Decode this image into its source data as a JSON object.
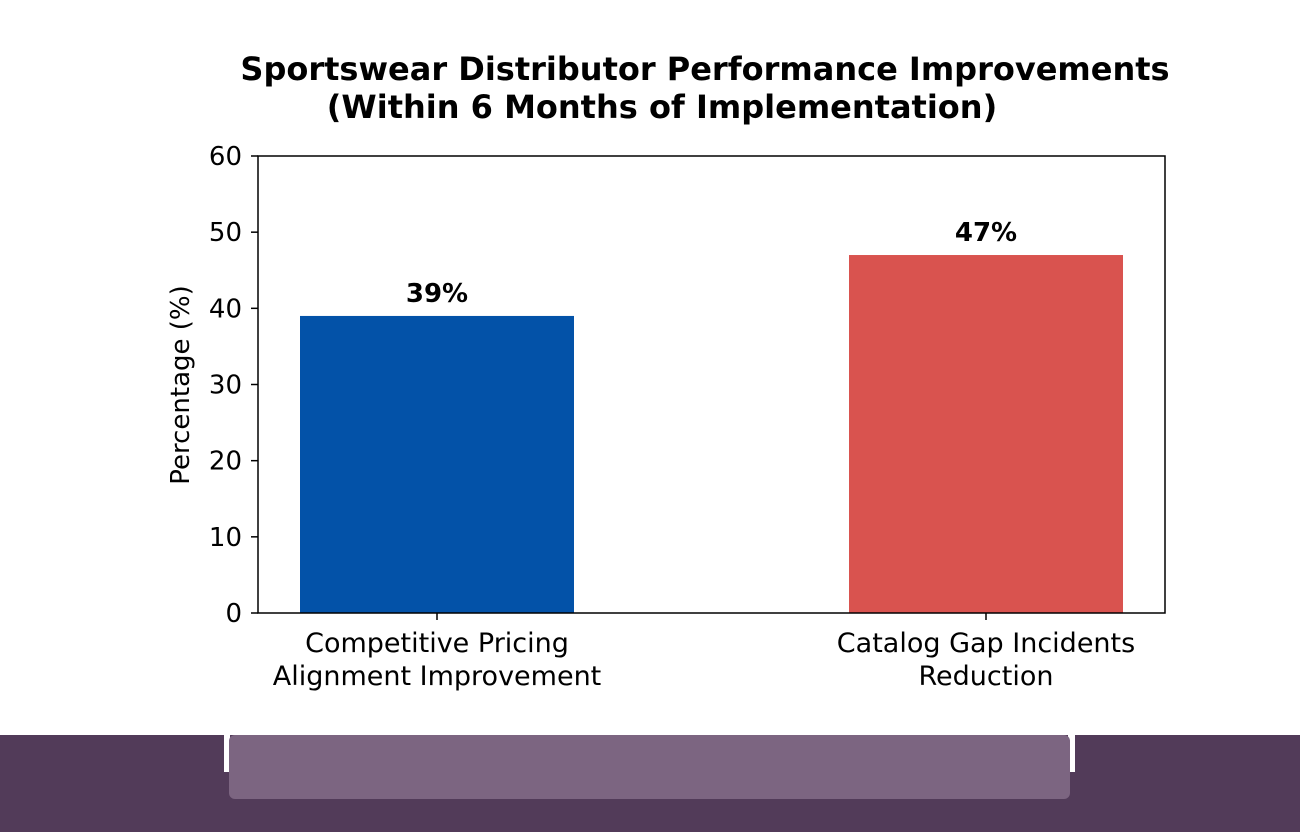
{
  "chart_data": {
    "type": "bar",
    "title_lines": [
      "Sportswear Distributor Performance Improvements",
      "(Within 6 Months of Implementation)"
    ],
    "xlabel": "",
    "ylabel": "Percentage (%)",
    "ylim": [
      0,
      60
    ],
    "yticks": [
      0,
      10,
      20,
      30,
      40,
      50,
      60
    ],
    "categories": [
      [
        "Competitive Pricing",
        "Alignment Improvement"
      ],
      [
        "Catalog Gap Incidents",
        "Reduction"
      ]
    ],
    "values": [
      39,
      47
    ],
    "data_labels": [
      "39%",
      "47%"
    ],
    "colors": [
      "#0352a8",
      "#d9534f"
    ],
    "grid": false,
    "legend": "none"
  },
  "footer": {
    "background_color": "#523b59",
    "center_panel_color": "#7c6581"
  }
}
